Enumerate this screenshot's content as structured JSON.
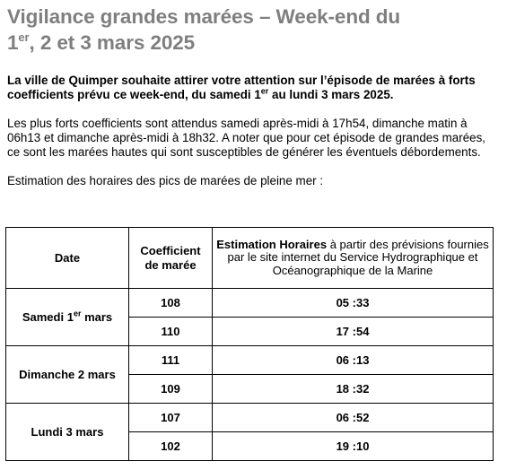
{
  "title": {
    "line1": "Vigilance grandes marées – Week-end du",
    "line2_num": "1",
    "line2_sup": "er",
    "line2_rest": ", 2 et 3 mars 2025"
  },
  "lead": {
    "part1": "La ville de Quimper souhaite attirer votre attention sur l’épisode de marées à forts coefficients prévu ce week-end, du samedi 1",
    "sup": "er",
    "part2": " au lundi 3 mars 2025."
  },
  "body": "Les plus forts coefficients sont attendus samedi après-midi à 17h54, dimanche matin à 06h13 et dimanche après-midi à 18h32. A noter que pour cet épisode de grandes marées, ce sont les marées hautes qui sont susceptibles de générer les éventuels débordements.",
  "intro": "Estimation des horaires des pics de marées de pleine mer :",
  "table": {
    "headers": {
      "date": "Date",
      "coef_line1": "Coefficient",
      "coef_line2": "de marée",
      "time_bold": "Estimation Horaires",
      "time_rest": " à partir des prévisions fournies par le site internet du Service Hydrographique et Océanographique de la Marine"
    },
    "days": [
      {
        "label": "Samedi 1",
        "label_sup": "er",
        "label_rest": " mars",
        "rows": [
          {
            "coef": "108",
            "time": "05 :33"
          },
          {
            "coef": "110",
            "time": "17 :54"
          }
        ]
      },
      {
        "label": "Dimanche 2 mars",
        "rows": [
          {
            "coef": "111",
            "time": "06 :13"
          },
          {
            "coef": "109",
            "time": "18 :32"
          }
        ]
      },
      {
        "label": "Lundi 3 mars",
        "rows": [
          {
            "coef": "107",
            "time": "06 :52"
          },
          {
            "coef": "102",
            "time": "19 :10"
          }
        ]
      }
    ]
  }
}
